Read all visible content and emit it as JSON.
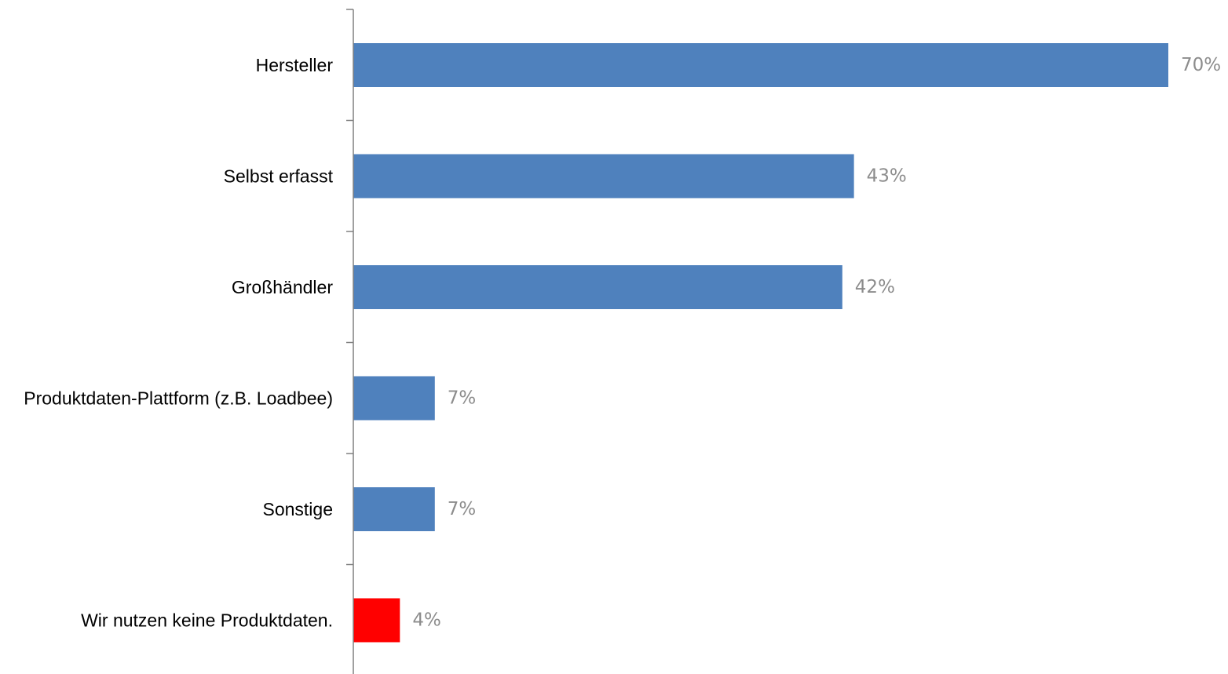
{
  "chart_data": {
    "type": "bar",
    "orientation": "horizontal",
    "categories": [
      "Hersteller",
      "Selbst erfasst",
      "Großhändler",
      "Produktdaten-Plattform (z.B. Loadbee)",
      "Sonstige",
      "Wir nutzen keine Produktdaten."
    ],
    "values": [
      70,
      43,
      42,
      7,
      7,
      4
    ],
    "value_labels": [
      "70%",
      "43%",
      "42%",
      "7%",
      "7%",
      "4%"
    ],
    "unit": "%",
    "xlim": [
      0,
      70
    ],
    "grid": false,
    "title": "",
    "xlabel": "",
    "ylabel": ""
  },
  "colors": {
    "bar_default": "#4f81bd",
    "bar_highlight": "#ff0000",
    "value_label": "#8c8c8c",
    "axis": "#808080"
  },
  "highlight_index": 5
}
